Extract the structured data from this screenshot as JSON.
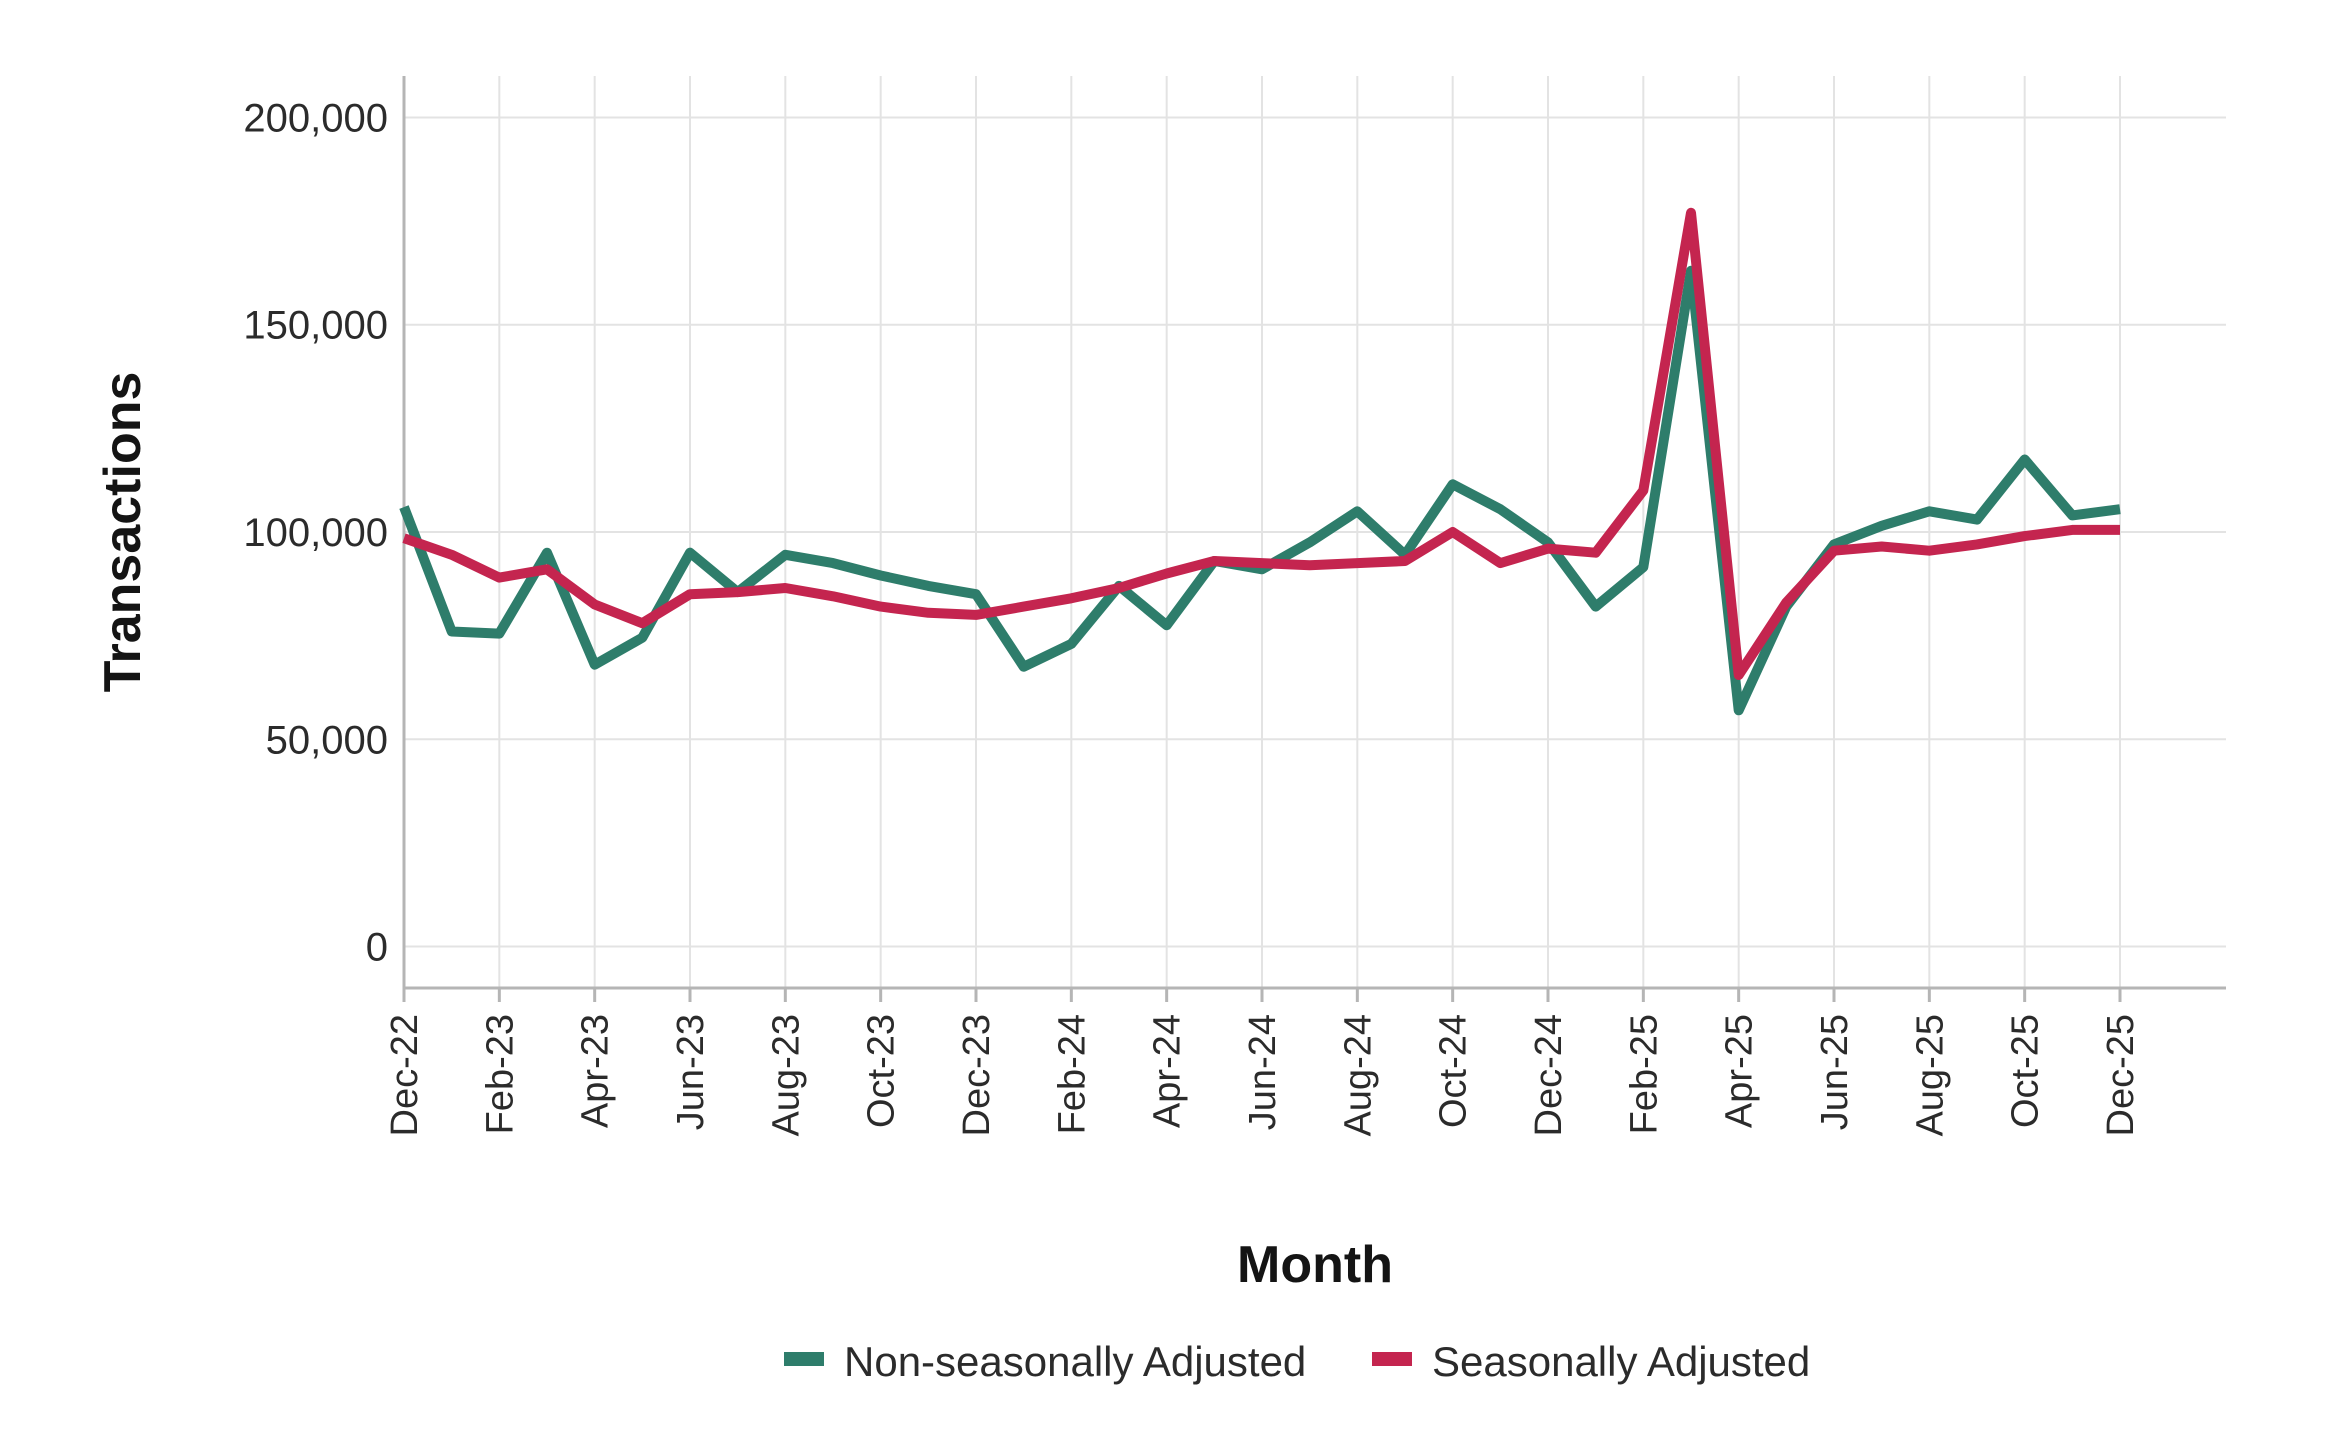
{
  "chart_data": {
    "type": "line",
    "xlabel": "Month",
    "ylabel": "Transactions",
    "ylim": [
      -10000,
      210000
    ],
    "yticks": [
      0,
      50000,
      100000,
      150000,
      200000
    ],
    "ytick_labels": [
      "0",
      "50,000",
      "100,000",
      "150,000",
      "200,000"
    ],
    "x": [
      "Dec-22",
      "Jan-23",
      "Feb-23",
      "Mar-23",
      "Apr-23",
      "May-23",
      "Jun-23",
      "Jul-23",
      "Aug-23",
      "Sep-23",
      "Oct-23",
      "Nov-23",
      "Dec-23",
      "Jan-24",
      "Feb-24",
      "Mar-24",
      "Apr-24",
      "May-24",
      "Jun-24",
      "Jul-24",
      "Aug-24",
      "Sep-24",
      "Oct-24",
      "Nov-24",
      "Dec-24",
      "Jan-25",
      "Feb-25",
      "Mar-25",
      "Apr-25",
      "May-25",
      "Jun-25",
      "Jul-25",
      "Aug-25",
      "Sep-25",
      "Oct-25",
      "Nov-25",
      "Dec-25"
    ],
    "xtick_labels": [
      "Dec-22",
      "Feb-23",
      "Apr-23",
      "Jun-23",
      "Aug-23",
      "Oct-23",
      "Dec-23",
      "Feb-24",
      "Apr-24",
      "Jun-24",
      "Aug-24",
      "Oct-24",
      "Dec-24",
      "Feb-25",
      "Apr-25",
      "Jun-25",
      "Aug-25",
      "Oct-25",
      "Dec-25"
    ],
    "grid": true,
    "legend_position": "bottom",
    "series": [
      {
        "name": "Non-seasonally Adjusted",
        "color": "#2e7d6b",
        "values": [
          106000,
          76000,
          75500,
          95000,
          68000,
          74500,
          95000,
          85500,
          94500,
          92500,
          89500,
          87000,
          85000,
          67500,
          73000,
          87000,
          77500,
          93000,
          91000,
          97500,
          105000,
          94500,
          111500,
          105500,
          97500,
          82000,
          91500,
          163000,
          57000,
          82000,
          97000,
          101500,
          105000,
          103000,
          117500,
          104000,
          105500
        ]
      },
      {
        "name": "Seasonally Adjusted",
        "color": "#c4254f",
        "values": [
          98500,
          94500,
          89000,
          91000,
          82500,
          78000,
          85000,
          85500,
          86500,
          84500,
          82000,
          80500,
          80000,
          82000,
          84000,
          86500,
          90000,
          93000,
          92500,
          92000,
          92500,
          93000,
          100000,
          92500,
          96000,
          95000,
          110000,
          177000,
          65500,
          83000,
          95500,
          96500,
          95500,
          97000,
          99000,
          100500,
          100500
        ]
      }
    ]
  }
}
